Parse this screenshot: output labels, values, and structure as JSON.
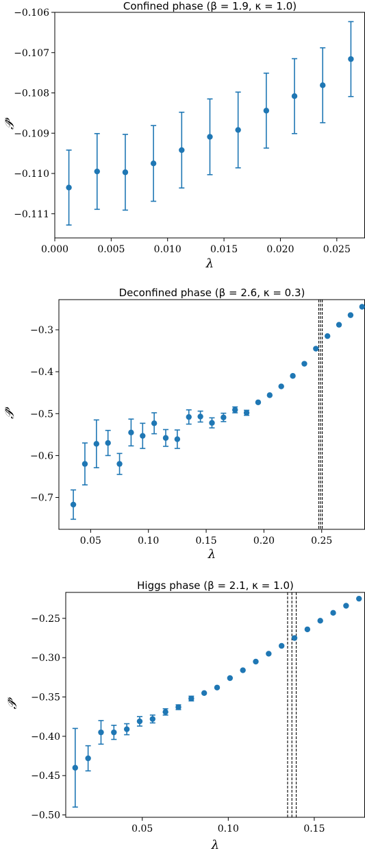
{
  "colors": {
    "series": "#1f77b4",
    "axes": "#000000",
    "marker_line": "#000000"
  },
  "chart_data": [
    {
      "type": "scatter",
      "title": "Confined phase (β = 1.9, κ = 1.0)",
      "xlabel": "λ",
      "ylabel": "𝒫̂",
      "xlim": [
        0.0,
        0.0275
      ],
      "ylim": [
        -0.1116,
        -0.106
      ],
      "xticks": [
        0.0,
        0.005,
        0.01,
        0.015,
        0.02,
        0.025
      ],
      "xtick_labels": [
        "0.000",
        "0.005",
        "0.010",
        "0.015",
        "0.020",
        "0.025"
      ],
      "yticks": [
        -0.111,
        -0.11,
        -0.109,
        -0.108,
        -0.107,
        -0.106
      ],
      "ytick_labels": [
        "−0.111",
        "−0.110",
        "−0.109",
        "−0.108",
        "−0.107",
        "−0.106"
      ],
      "grid": false,
      "vlines": [],
      "series": [
        {
          "x": [
            0.00125,
            0.00375,
            0.00625,
            0.00875,
            0.01125,
            0.01375,
            0.01625,
            0.01875,
            0.02125,
            0.02375,
            0.02625
          ],
          "y": [
            -0.11035,
            -0.10995,
            -0.10997,
            -0.10975,
            -0.10942,
            -0.10909,
            -0.10892,
            -0.10844,
            -0.10808,
            -0.10781,
            -0.10716
          ],
          "err": [
            0.00093,
            0.00094,
            0.00094,
            0.00094,
            0.00094,
            0.00094,
            0.00094,
            0.00093,
            0.00093,
            0.00093,
            0.00093
          ]
        }
      ]
    },
    {
      "type": "scatter",
      "title": "Deconfined phase (β = 2.6, κ = 0.3)",
      "xlabel": "λ",
      "ylabel": "𝒫̂",
      "xlim": [
        0.0225,
        0.2875
      ],
      "ylim": [
        -0.776,
        -0.228
      ],
      "xticks": [
        0.05,
        0.1,
        0.15,
        0.2,
        0.25
      ],
      "xtick_labels": [
        "0.05",
        "0.10",
        "0.15",
        "0.20",
        "0.25"
      ],
      "yticks": [
        -0.7,
        -0.6,
        -0.5,
        -0.4,
        -0.3
      ],
      "ytick_labels": [
        "−0.7",
        "−0.6",
        "−0.5",
        "−0.4",
        "−0.3"
      ],
      "grid": false,
      "vlines": [
        0.2475,
        0.249,
        0.2505
      ],
      "series": [
        {
          "x": [
            0.035,
            0.045,
            0.055,
            0.065,
            0.075,
            0.085,
            0.095,
            0.105,
            0.115,
            0.125,
            0.135,
            0.145,
            0.155,
            0.165,
            0.175,
            0.185,
            0.195,
            0.205,
            0.215,
            0.225,
            0.235,
            0.245,
            0.255,
            0.265,
            0.275,
            0.285
          ],
          "y": [
            -0.717,
            -0.62,
            -0.572,
            -0.57,
            -0.62,
            -0.545,
            -0.553,
            -0.523,
            -0.558,
            -0.561,
            -0.508,
            -0.507,
            -0.522,
            -0.509,
            -0.491,
            -0.498,
            -0.473,
            -0.456,
            -0.435,
            -0.41,
            -0.381,
            -0.345,
            -0.315,
            -0.288,
            -0.265,
            -0.245
          ],
          "err": [
            0.035,
            0.05,
            0.057,
            0.03,
            0.025,
            0.032,
            0.03,
            0.025,
            0.02,
            0.022,
            0.017,
            0.013,
            0.012,
            0.01,
            0.007,
            0.006,
            0.004,
            0.003,
            0.002,
            0.002,
            0.002,
            0.002,
            0.002,
            0.002,
            0.002,
            0.002
          ]
        }
      ]
    },
    {
      "type": "scatter",
      "title": "Higgs phase (β = 2.1, κ = 1.0)",
      "xlabel": "λ",
      "ylabel": "𝒫̂",
      "xlim": [
        0.0055,
        0.1795
      ],
      "ylim": [
        -0.503,
        -0.217
      ],
      "xticks": [
        0.05,
        0.1,
        0.15
      ],
      "xtick_labels": [
        "0.05",
        "0.10",
        "0.15"
      ],
      "yticks": [
        -0.5,
        -0.45,
        -0.4,
        -0.35,
        -0.3,
        -0.25
      ],
      "ytick_labels": [
        "−0.50",
        "−0.45",
        "−0.40",
        "−0.35",
        "−0.30",
        "−0.25"
      ],
      "grid": false,
      "vlines": [
        0.1345,
        0.137,
        0.1395
      ],
      "series": [
        {
          "x": [
            0.011,
            0.0185,
            0.026,
            0.0335,
            0.041,
            0.0485,
            0.056,
            0.0635,
            0.071,
            0.0785,
            0.086,
            0.0935,
            0.101,
            0.1085,
            0.116,
            0.1235,
            0.131,
            0.1385,
            0.146,
            0.1535,
            0.161,
            0.1685,
            0.176
          ],
          "y": [
            -0.44,
            -0.428,
            -0.395,
            -0.395,
            -0.391,
            -0.381,
            -0.378,
            -0.369,
            -0.363,
            -0.352,
            -0.345,
            -0.338,
            -0.326,
            -0.316,
            -0.305,
            -0.295,
            -0.285,
            -0.275,
            -0.264,
            -0.253,
            -0.243,
            -0.234,
            -0.225
          ],
          "err": [
            0.05,
            0.016,
            0.015,
            0.009,
            0.007,
            0.006,
            0.005,
            0.004,
            0.003,
            0.003,
            0.002,
            0.002,
            0.002,
            0.002,
            0.002,
            0.002,
            0.002,
            0.002,
            0.002,
            0.002,
            0.002,
            0.002,
            0.002
          ]
        }
      ]
    }
  ]
}
